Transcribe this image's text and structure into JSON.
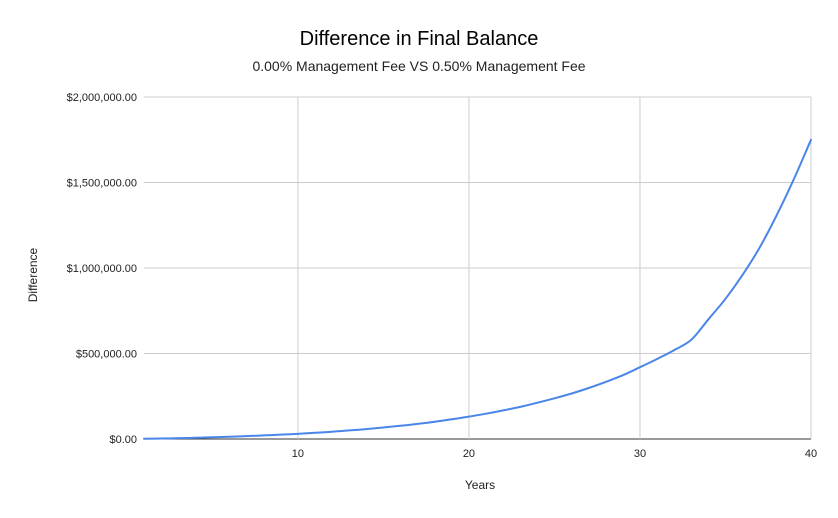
{
  "chart_data": {
    "type": "line",
    "title": "Difference in Final Balance",
    "subtitle": "0.00% Management Fee VS 0.50% Management Fee",
    "xlabel": "Years",
    "ylabel": "Difference",
    "xlim": [
      1,
      40
    ],
    "ylim": [
      0,
      2000000
    ],
    "x_ticks": [
      10,
      20,
      30,
      40
    ],
    "y_ticks": [
      0,
      500000,
      1000000,
      1500000,
      2000000
    ],
    "y_tick_labels": [
      "$0.00",
      "$500,000.00",
      "$1,000,000.00",
      "$1,500,000.00",
      "$2,000,000.00"
    ],
    "grid": true,
    "legend": "none",
    "series": [
      {
        "color": "#4a86e8",
        "x": [
          1,
          2,
          3,
          4,
          5,
          6,
          7,
          8,
          9,
          10,
          11,
          12,
          13,
          14,
          15,
          16,
          17,
          18,
          19,
          20,
          21,
          22,
          23,
          24,
          25,
          26,
          27,
          28,
          29,
          30,
          31,
          32,
          33,
          34,
          35,
          36,
          37,
          38,
          39,
          40
        ],
        "values": [
          1500,
          3000,
          5000,
          7500,
          10500,
          13500,
          17000,
          21000,
          25500,
          30000,
          36000,
          42500,
          50000,
          58000,
          67000,
          77000,
          88500,
          101000,
          115000,
          131000,
          148000,
          167000,
          188000,
          212000,
          238000,
          266000,
          298000,
          334000,
          373000,
          420000,
          468000,
          520000,
          580000,
          700000,
          820000,
          960000,
          1120000,
          1310000,
          1520000,
          1750000
        ]
      }
    ]
  }
}
